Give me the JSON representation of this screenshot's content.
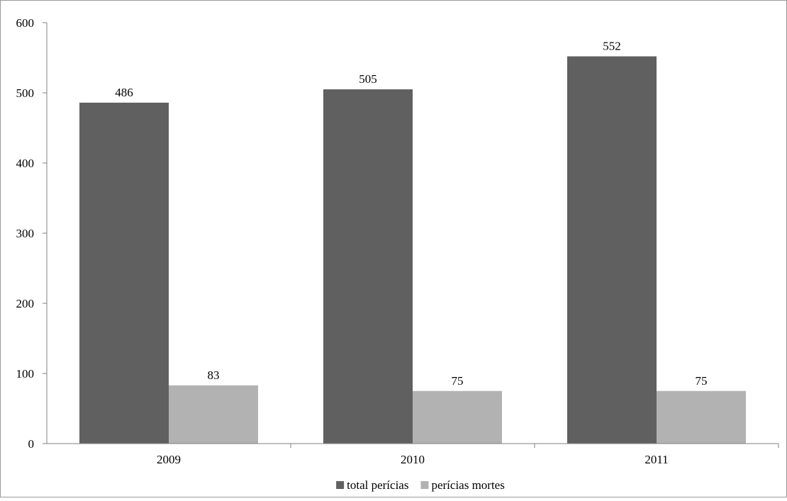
{
  "chart_data": {
    "type": "bar",
    "title": "",
    "xlabel": "",
    "ylabel": "",
    "categories": [
      "2009",
      "2010",
      "2011"
    ],
    "series": [
      {
        "name": "total perícias",
        "color": "#606060",
        "values": [
          486,
          505,
          552
        ]
      },
      {
        "name": "perícias mortes",
        "color": "#b2b2b2",
        "values": [
          83,
          75,
          75
        ]
      }
    ],
    "ylim": [
      0,
      600
    ],
    "yticks": [
      0,
      100,
      200,
      300,
      400,
      500,
      600
    ],
    "ytick_labels": [
      "0",
      "100",
      "200",
      "300",
      "400",
      "500",
      "600"
    ],
    "grid": false,
    "legend_position": "bottom",
    "data_labels": true
  }
}
